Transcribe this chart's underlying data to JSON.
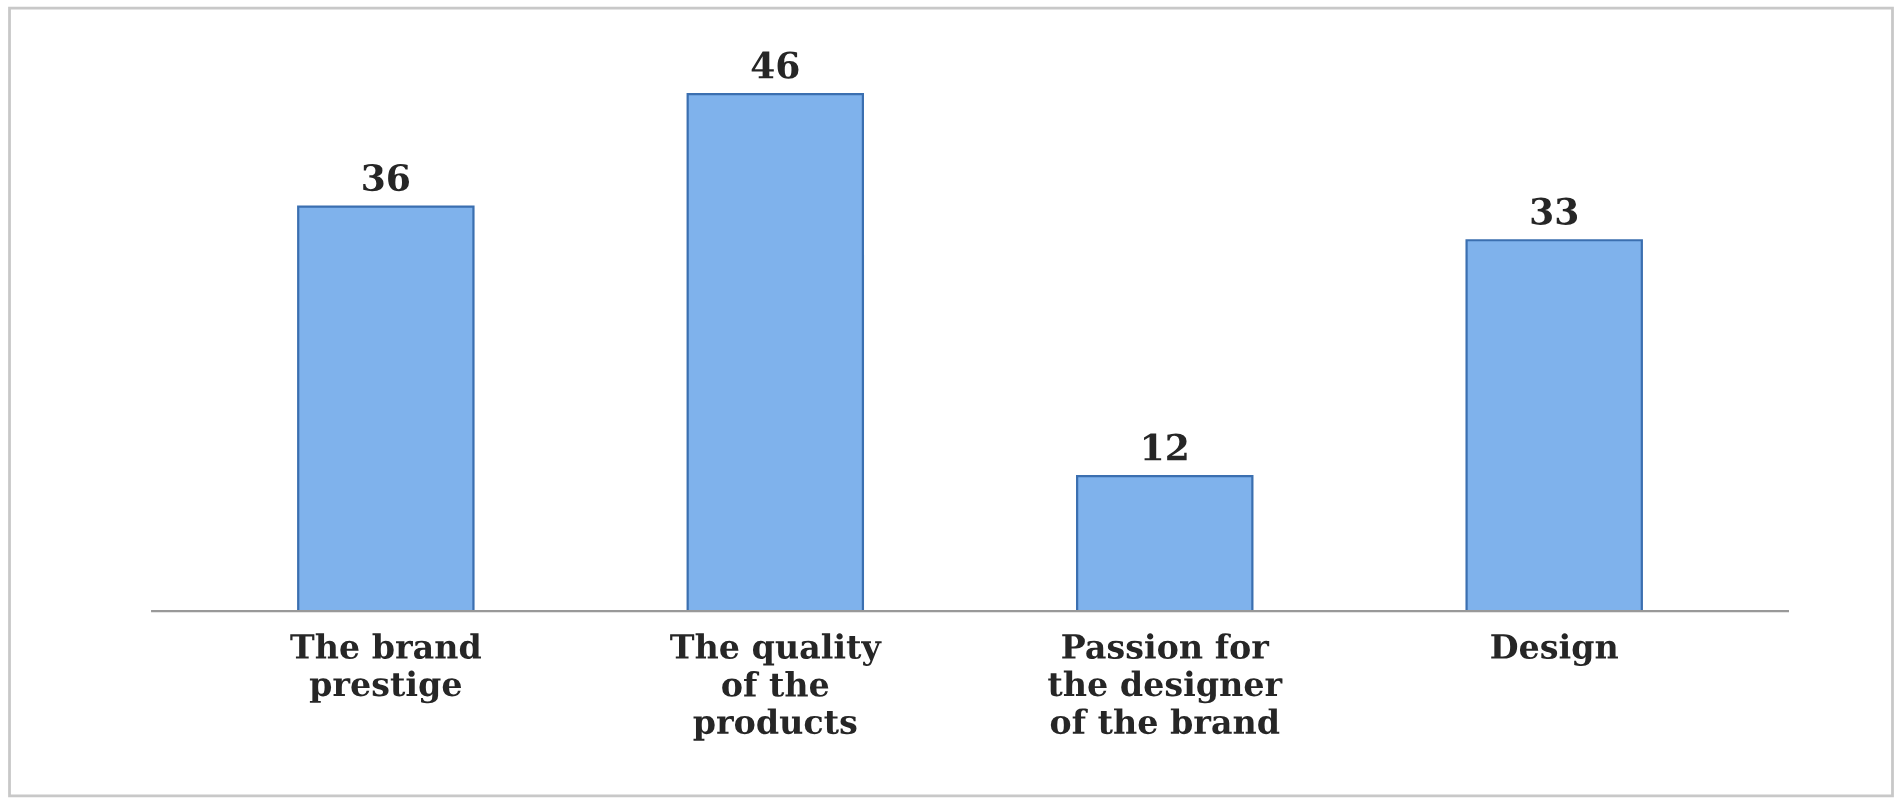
{
  "chart_data": {
    "type": "bar",
    "categories": [
      "The brand\nprestige",
      "The quality\nof the\nproducts",
      "Passion for\nthe designer\nof the brand",
      "Design"
    ],
    "values": [
      36,
      46,
      12,
      33
    ],
    "color": "#7fb2ec",
    "data_labels": true,
    "tick_labels": "x",
    "grid": false,
    "legend": false
  }
}
